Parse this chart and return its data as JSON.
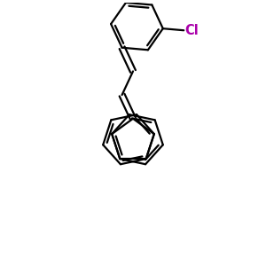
{
  "background": "#ffffff",
  "bond_color": "#000000",
  "cl_color": "#aa00aa",
  "bond_width": 1.6,
  "dbo": 0.12,
  "font_size": 10.5,
  "figsize": [
    3.0,
    3.0
  ],
  "dpi": 100
}
